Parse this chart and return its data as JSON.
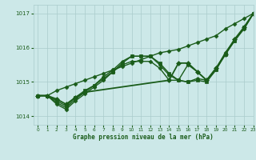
{
  "background_color": "#cce8e8",
  "grid_color": "#aacccc",
  "line_color": "#1a5c1a",
  "text_color": "#1a5c1a",
  "xlabel": "Graphe pression niveau de la mer (hPa)",
  "xlim": [
    -0.5,
    23
  ],
  "ylim": [
    1013.75,
    1017.25
  ],
  "yticks": [
    1014,
    1015,
    1016,
    1017
  ],
  "xticks": [
    0,
    1,
    2,
    3,
    4,
    5,
    6,
    7,
    8,
    9,
    10,
    11,
    12,
    13,
    14,
    15,
    16,
    17,
    18,
    19,
    20,
    21,
    22,
    23
  ],
  "series": [
    {
      "x": [
        0,
        1,
        2,
        3,
        4,
        5,
        6,
        7,
        8,
        9,
        10,
        11,
        12,
        13,
        14,
        15,
        16,
        17,
        18,
        19,
        20,
        21,
        22,
        23
      ],
      "y": [
        1014.6,
        1014.6,
        1014.75,
        1014.85,
        1014.95,
        1015.05,
        1015.15,
        1015.25,
        1015.35,
        1015.45,
        1015.55,
        1015.65,
        1015.75,
        1015.85,
        1015.9,
        1015.95,
        1016.05,
        1016.15,
        1016.25,
        1016.35,
        1016.55,
        1016.7,
        1016.85,
        1017.0
      ],
      "marker": "D",
      "markersize": 2.5,
      "linewidth": 1.0
    },
    {
      "x": [
        0,
        1,
        2,
        3,
        4,
        5,
        6,
        7,
        8,
        9,
        10,
        11,
        12,
        13,
        14,
        15,
        16,
        17,
        18,
        19,
        20,
        21,
        22,
        23
      ],
      "y": [
        1014.6,
        1014.6,
        1014.45,
        1014.3,
        1014.55,
        1014.75,
        1014.9,
        1015.1,
        1015.3,
        1015.55,
        1015.75,
        1015.75,
        1015.75,
        1015.55,
        1015.25,
        1015.05,
        1015.0,
        1015.05,
        1015.0,
        1015.35,
        1015.8,
        1016.2,
        1016.6,
        1017.0
      ],
      "marker": "s",
      "markersize": 2.5,
      "linewidth": 1.0
    },
    {
      "x": [
        0,
        1,
        2,
        3,
        4,
        5,
        6,
        7,
        8,
        9,
        10,
        11,
        12,
        13,
        14,
        15,
        16,
        17,
        18,
        19,
        20,
        21,
        22,
        23
      ],
      "y": [
        1014.6,
        1014.6,
        1014.4,
        1014.25,
        1014.5,
        1014.7,
        1014.9,
        1015.15,
        1015.35,
        1015.6,
        1015.75,
        1015.75,
        1015.75,
        1015.5,
        1015.2,
        1015.05,
        1015.0,
        1015.1,
        1015.05,
        1015.35,
        1015.85,
        1016.2,
        1016.55,
        1017.0
      ],
      "marker": "o",
      "markersize": 2.5,
      "linewidth": 1.0
    },
    {
      "x": [
        0,
        1,
        2,
        3,
        4,
        5,
        6,
        7,
        8,
        9,
        10,
        11,
        12,
        13,
        14,
        15,
        16,
        17,
        18,
        19,
        20,
        21,
        22,
        23
      ],
      "y": [
        1014.6,
        1014.6,
        1014.35,
        1014.2,
        1014.45,
        1014.65,
        1014.85,
        1015.05,
        1015.3,
        1015.5,
        1015.6,
        1015.6,
        1015.6,
        1015.4,
        1015.05,
        1015.05,
        1015.5,
        1015.3,
        1015.05,
        1015.4,
        1015.85,
        1016.25,
        1016.55,
        1017.0
      ],
      "marker": "D",
      "markersize": 2.5,
      "linewidth": 1.0
    },
    {
      "x": [
        0,
        1,
        2,
        3,
        4,
        5,
        14,
        15,
        16,
        17,
        18,
        19,
        20,
        21,
        22,
        23
      ],
      "y": [
        1014.6,
        1014.6,
        1014.5,
        1014.35,
        1014.55,
        1014.7,
        1015.05,
        1015.55,
        1015.55,
        1015.3,
        1015.05,
        1015.4,
        1015.8,
        1016.25,
        1016.6,
        1017.0
      ],
      "marker": "D",
      "markersize": 3.0,
      "linewidth": 1.3
    }
  ]
}
